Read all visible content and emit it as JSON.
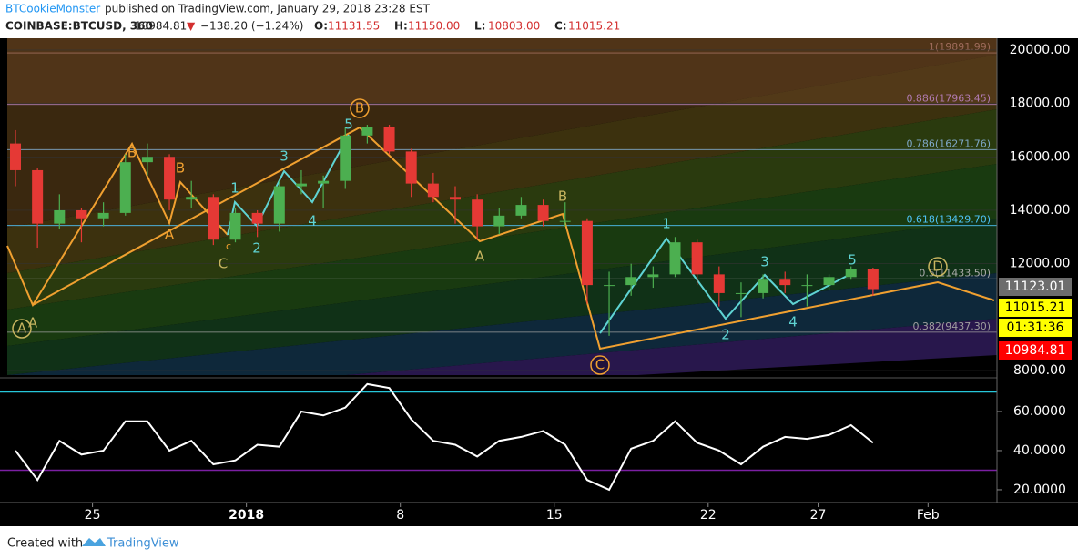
{
  "header": {
    "author": "BTCookieMonster",
    "published": "published on TradingView.com, January 29, 2018 23:28 EST",
    "symbol": "COINBASE:BTCUSD, 360",
    "last": "10984.81",
    "arrow": "▼",
    "change": "−138.20 (−1.24%)",
    "ohlc": [
      {
        "label": "O:",
        "value": "11131.55"
      },
      {
        "label": "H:",
        "value": "11150.00"
      },
      {
        "label": "L:",
        "value": "10803.00"
      },
      {
        "label": "C:",
        "value": "11015.21"
      }
    ]
  },
  "footer": {
    "created": "Created with",
    "brand": "TradingView"
  },
  "chart_data": [
    {
      "type": "candlestick",
      "up_color": "#4caf50",
      "down_color": "#e53935",
      "x": [
        "2017-12-21",
        "2017-12-22",
        "2017-12-23",
        "2017-12-24",
        "2017-12-25",
        "2017-12-26",
        "2017-12-27",
        "2017-12-28",
        "2017-12-29",
        "2017-12-30",
        "2017-12-31",
        "2018-01-01",
        "2018-01-02",
        "2018-01-03",
        "2018-01-04",
        "2018-01-05",
        "2018-01-06",
        "2018-01-07",
        "2018-01-08",
        "2018-01-09",
        "2018-01-10",
        "2018-01-11",
        "2018-01-12",
        "2018-01-13",
        "2018-01-14",
        "2018-01-15",
        "2018-01-16",
        "2018-01-17",
        "2018-01-18",
        "2018-01-19",
        "2018-01-20",
        "2018-01-21",
        "2018-01-22",
        "2018-01-23",
        "2018-01-24",
        "2018-01-25",
        "2018-01-26",
        "2018-01-27",
        "2018-01-28",
        "2018-01-29"
      ],
      "open": [
        16500,
        15500,
        13500,
        14000,
        13700,
        13900,
        15800,
        16000,
        14400,
        14500,
        12900,
        13900,
        13500,
        14900,
        15000,
        15100,
        16800,
        17100,
        16200,
        15000,
        14500,
        14400,
        13400,
        13800,
        14200,
        13600,
        13600,
        11200,
        11200,
        11500,
        11600,
        12800,
        11600,
        10900,
        10900,
        11400,
        11200,
        11200,
        11500,
        11800
      ],
      "high": [
        17000,
        15600,
        14600,
        14100,
        14300,
        16100,
        16500,
        16100,
        15100,
        14600,
        14100,
        14000,
        15100,
        15500,
        15300,
        17100,
        17200,
        17200,
        16300,
        15400,
        14900,
        14600,
        14100,
        14500,
        14400,
        14300,
        13700,
        11700,
        12000,
        11900,
        13000,
        12900,
        11900,
        11300,
        11600,
        11700,
        11600,
        11600,
        11900,
        11850
      ],
      "low": [
        14900,
        12600,
        13300,
        12800,
        13400,
        13800,
        15300,
        14000,
        14100,
        12700,
        12800,
        13000,
        13200,
        14600,
        14100,
        14800,
        16500,
        16100,
        14500,
        14300,
        13500,
        12900,
        13100,
        13700,
        13400,
        13400,
        10500,
        9300,
        10800,
        11100,
        11500,
        11200,
        10400,
        10000,
        10700,
        10900,
        10400,
        11000,
        11400,
        10800
      ],
      "close": [
        15500,
        13500,
        14000,
        13700,
        13900,
        15800,
        16000,
        14400,
        14500,
        12900,
        13900,
        13500,
        14900,
        15000,
        15100,
        16800,
        17100,
        16200,
        15000,
        14500,
        14400,
        13400,
        13800,
        14200,
        13600,
        13600,
        11200,
        11200,
        11500,
        11600,
        12800,
        11600,
        10900,
        10900,
        11400,
        11200,
        11200,
        11500,
        11800,
        11050
      ],
      "ylim": [
        7830,
        20440
      ],
      "yticks": [
        {
          "value": 8000,
          "label": "8000.00"
        },
        {
          "value": 12000,
          "label": "12000.00"
        },
        {
          "value": 14000,
          "label": "14000.00"
        },
        {
          "value": 16000,
          "label": "16000.00"
        },
        {
          "value": 18000,
          "label": "18000.00"
        },
        {
          "value": 20000,
          "label": "20000.00"
        }
      ],
      "fib_levels": [
        {
          "label": "1(19891.99)",
          "value": 19891.99,
          "color": "#9e6b5a"
        },
        {
          "label": "0.886(17963.45)",
          "value": 17963.45,
          "color": "#b07ab0"
        },
        {
          "label": "0.786(16271.76)",
          "value": 16271.76,
          "color": "#7fa8c8"
        },
        {
          "label": "0.618(13429.70)",
          "value": 13429.7,
          "color": "#4fc3f7"
        },
        {
          "label": "0.5(11433.50)",
          "value": 11433.5,
          "color": "#aaaaaa"
        },
        {
          "label": "0.382(9437.30)",
          "value": 9437.3,
          "color": "#9e9e9e"
        }
      ],
      "axis_markers": [
        {
          "value": 11123.01,
          "color": "#6d6d6d",
          "text_color": "#ffffff"
        },
        {
          "value": 11015.21,
          "color": "#ffff00",
          "text_color": "#000000"
        },
        {
          "label": "01:31:36",
          "color": "#ffff00",
          "text_color": "#000000"
        },
        {
          "value": 10984.81,
          "color": "#ff0000",
          "text_color": "#ffffff"
        }
      ],
      "annotations": [
        {
          "text": "A",
          "color": "#c8b560"
        },
        {
          "text": "A",
          "color": "#c8b560",
          "circled": true
        },
        {
          "text": "B",
          "color": "#f0a030"
        },
        {
          "text": "B",
          "color": "#f0a030"
        },
        {
          "text": "A",
          "color": "#f0a030"
        },
        {
          "text": "C",
          "color": "#c8b560"
        },
        {
          "text": "c",
          "color": "#f0a030"
        },
        {
          "text": "1",
          "color": "#5fd3d3"
        },
        {
          "text": "2",
          "color": "#5fd3d3"
        },
        {
          "text": "3",
          "color": "#5fd3d3"
        },
        {
          "text": "4",
          "color": "#5fd3d3"
        },
        {
          "text": "5",
          "color": "#5fd3d3"
        },
        {
          "text": "B",
          "color": "#f0a030",
          "circled": true
        },
        {
          "text": "B",
          "color": "#c8b560"
        },
        {
          "text": "A",
          "color": "#c8b560"
        },
        {
          "text": "C",
          "color": "#f0a030",
          "circled": true
        },
        {
          "text": "1",
          "color": "#5fd3d3"
        },
        {
          "text": "2",
          "color": "#5fd3d3"
        },
        {
          "text": "3",
          "color": "#5fd3d3"
        },
        {
          "text": "4",
          "color": "#5fd3d3"
        },
        {
          "text": "5",
          "color": "#5fd3d3"
        },
        {
          "text": "D",
          "color": "#c8b560",
          "circled": true
        }
      ]
    },
    {
      "type": "line",
      "color": "#ffffff",
      "x": [
        "2017-12-21",
        "2017-12-22",
        "2017-12-23",
        "2017-12-24",
        "2017-12-25",
        "2017-12-26",
        "2017-12-27",
        "2017-12-28",
        "2017-12-29",
        "2017-12-30",
        "2017-12-31",
        "2018-01-01",
        "2018-01-02",
        "2018-01-03",
        "2018-01-04",
        "2018-01-05",
        "2018-01-06",
        "2018-01-07",
        "2018-01-08",
        "2018-01-09",
        "2018-01-10",
        "2018-01-11",
        "2018-01-12",
        "2018-01-13",
        "2018-01-14",
        "2018-01-15",
        "2018-01-16",
        "2018-01-17",
        "2018-01-18",
        "2018-01-19",
        "2018-01-20",
        "2018-01-21",
        "2018-01-22",
        "2018-01-23",
        "2018-01-24",
        "2018-01-25",
        "2018-01-26",
        "2018-01-27",
        "2018-01-28",
        "2018-01-29"
      ],
      "values": [
        40,
        25,
        45,
        38,
        40,
        55,
        55,
        40,
        45,
        33,
        35,
        43,
        42,
        60,
        58,
        62,
        74,
        72,
        56,
        45,
        43,
        37,
        45,
        47,
        50,
        43,
        25,
        20,
        41,
        45,
        55,
        44,
        40,
        33,
        42,
        47,
        46,
        48,
        53,
        44
      ],
      "ylim": [
        14.4,
        75.8
      ],
      "yticks": [
        {
          "value": 20,
          "label": "20.0000"
        },
        {
          "value": 40,
          "label": "40.0000"
        },
        {
          "value": 60,
          "label": "60.0000"
        }
      ],
      "levels": [
        {
          "value": 70,
          "color": "#26c6da"
        },
        {
          "value": 30,
          "color": "#7b1fa2"
        }
      ],
      "xticks": [
        {
          "value": "2017-12-25",
          "label": "25"
        },
        {
          "value": "2018-01-01",
          "label": "2018"
        },
        {
          "value": "2018-01-08",
          "label": "8"
        },
        {
          "value": "2018-01-15",
          "label": "15"
        },
        {
          "value": "2018-01-22",
          "label": "22"
        },
        {
          "value": "2018-01-27",
          "label": "27"
        },
        {
          "value": "2018-02-01",
          "label": "Feb"
        }
      ]
    }
  ]
}
